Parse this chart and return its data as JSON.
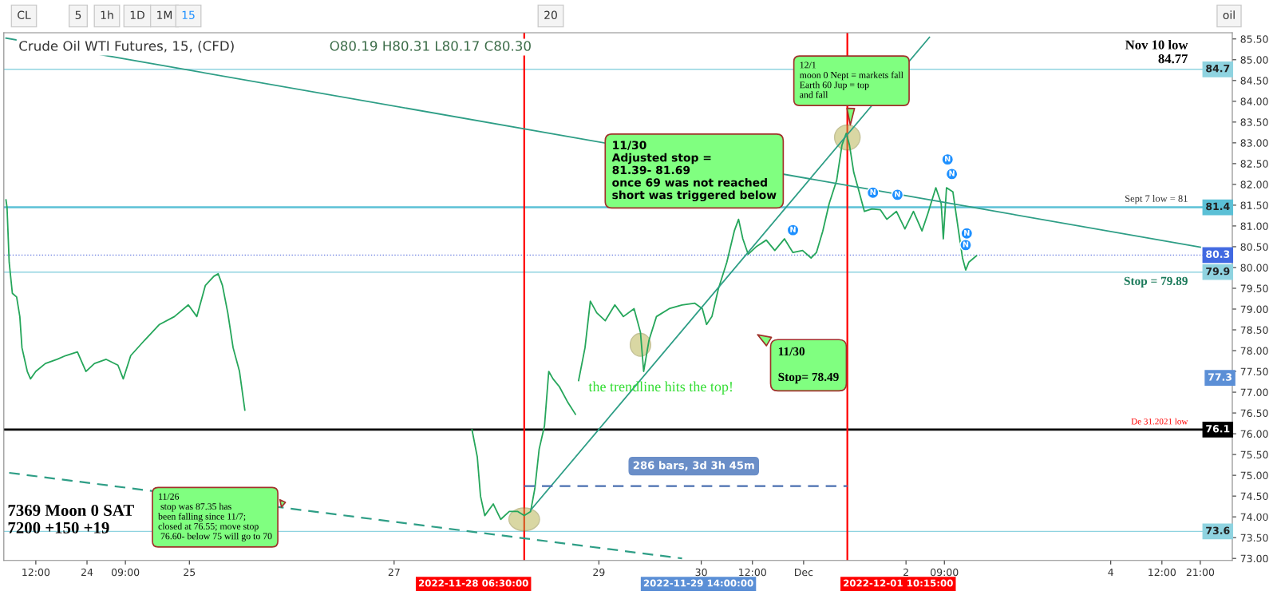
{
  "chart_data": {
    "type": "line",
    "title": "Crude Oil WTI Futures, 15, (CFD)",
    "subtitle": "O80.19 H80.31 L80.17 C80.30",
    "xlim": [
      "2022-11-23T04:30",
      "2022-12-05T04:30"
    ],
    "ylim": [
      72.95,
      85.65
    ],
    "xticks": [
      {
        "value": "2022-11-23T12:00",
        "label": "12:00"
      },
      {
        "value": "2022-11-24",
        "label": "24"
      },
      {
        "value": "2022-11-24T09:00",
        "label": "09:00"
      },
      {
        "value": "2022-11-25",
        "label": "25"
      },
      {
        "value": "2022-11-27",
        "label": "27"
      },
      {
        "value": "2022-11-29",
        "label": "29"
      },
      {
        "value": "2022-11-30",
        "label": "30"
      },
      {
        "value": "2022-11-30T12:00",
        "label": "12:00"
      },
      {
        "value": "2022-12-01",
        "label": "Dec"
      },
      {
        "value": "2022-12-02",
        "label": "2"
      },
      {
        "value": "2022-12-02T09:00",
        "label": "09:00"
      },
      {
        "value": "2022-12-04",
        "label": "4"
      },
      {
        "value": "2022-12-04T12:00",
        "label": "12:00"
      },
      {
        "value": "2022-12-04T21:00",
        "label": "21:00"
      }
    ],
    "yticks": [
      {
        "value": 73.0,
        "label": "73.00"
      },
      {
        "value": 73.5,
        "label": "73.50"
      },
      {
        "value": 74.0,
        "label": "74.00"
      },
      {
        "value": 74.5,
        "label": "74.50"
      },
      {
        "value": 75.0,
        "label": "75.00"
      },
      {
        "value": 75.5,
        "label": "75.50"
      },
      {
        "value": 76.0,
        "label": "76.00"
      },
      {
        "value": 76.5,
        "label": "76.50"
      },
      {
        "value": 77.0,
        "label": "77.00"
      },
      {
        "value": 77.5,
        "label": "77.50"
      },
      {
        "value": 78.0,
        "label": "78.00"
      },
      {
        "value": 78.5,
        "label": "78.50"
      },
      {
        "value": 79.0,
        "label": "79.00"
      },
      {
        "value": 79.5,
        "label": "79.50"
      },
      {
        "value": 80.0,
        "label": "80.00"
      },
      {
        "value": 80.5,
        "label": "80.50"
      },
      {
        "value": 81.0,
        "label": "81.00"
      },
      {
        "value": 81.5,
        "label": "81.50"
      },
      {
        "value": 82.0,
        "label": "82.00"
      },
      {
        "value": 82.5,
        "label": "82.50"
      },
      {
        "value": 83.0,
        "label": "83.00"
      },
      {
        "value": 83.5,
        "label": "83.50"
      },
      {
        "value": 84.0,
        "label": "84.00"
      },
      {
        "value": 84.5,
        "label": "84.50"
      },
      {
        "value": 85.0,
        "label": "85.00"
      },
      {
        "value": 85.5,
        "label": "85.50"
      }
    ],
    "grid": false,
    "series": [
      {
        "color": "#26a65b",
        "x": [
          "2022-11-23T05:00",
          "2022-11-23T05:15",
          "2022-11-23T05:45",
          "2022-11-23T06:30",
          "2022-11-23T07:30",
          "2022-11-23T08:15",
          "2022-11-23T08:45",
          "2022-11-23T10:00",
          "2022-11-23T10:45",
          "2022-11-23T12:00",
          "2022-11-23T14:15",
          "2022-11-23T17:00",
          "2022-11-23T19:00",
          "2022-11-23T21:45",
          "2022-11-23T23:45",
          "2022-11-24T01:45",
          "2022-11-24T04:30",
          "2022-11-24T07:15",
          "2022-11-24T08:30",
          "2022-11-24T10:15",
          "2022-11-24T13:30",
          "2022-11-24T17:00",
          "2022-11-24T20:30",
          "2022-11-24T23:45",
          "2022-11-25T01:45",
          "2022-11-25T03:45",
          "2022-11-25T05:45",
          "2022-11-25T06:45",
          "2022-11-25T07:45",
          "2022-11-25T09:00",
          "2022-11-25T10:15",
          "2022-11-25T11:45",
          "2022-11-25T13:00",
          "2022-11-26T12:00",
          "2022-11-27T18:15",
          "2022-11-27T19:30",
          "2022-11-27T20:15",
          "2022-11-27T21:15",
          "2022-11-27T23:15",
          "2022-11-28T01:00",
          "2022-11-28T03:00",
          "2022-11-28T05:00",
          "2022-11-28T06:30",
          "2022-11-28T08:00",
          "2022-11-28T09:00",
          "2022-11-28T10:00",
          "2022-11-28T11:15",
          "2022-11-28T12:15",
          "2022-11-28T13:15",
          "2022-11-28T14:45",
          "2022-11-28T16:45",
          "2022-11-28T18:30",
          "2022-11-28T19:00",
          "2022-11-28T19:15",
          "2022-11-28T20:45",
          "2022-11-28T22:00",
          "2022-11-28T23:30",
          "2022-11-29T01:30",
          "2022-11-29T03:45",
          "2022-11-29T05:45",
          "2022-11-29T08:15",
          "2022-11-29T09:45",
          "2022-11-29T10:30",
          "2022-11-29T11:45",
          "2022-11-29T13:30",
          "2022-11-29T16:30",
          "2022-11-29T19:30",
          "2022-11-29T22:30",
          "2022-11-30T00:15",
          "2022-11-30T01:15",
          "2022-11-30T02:30",
          "2022-11-30T04:00",
          "2022-11-30T06:00",
          "2022-11-30T07:45",
          "2022-11-30T08:45",
          "2022-11-30T09:45",
          "2022-11-30T11:00",
          "2022-11-30T13:00",
          "2022-11-30T15:15",
          "2022-11-30T17:15",
          "2022-11-30T19:30",
          "2022-11-30T21:30",
          "2022-11-30T23:45",
          "2022-12-01T01:45",
          "2022-12-01T03:00",
          "2022-12-01T04:30",
          "2022-12-01T06:00",
          "2022-12-01T07:45",
          "2022-12-01T09:00",
          "2022-12-01T10:00",
          "2022-12-01T10:45",
          "2022-12-01T11:45",
          "2022-12-01T12:45",
          "2022-12-01T14:15",
          "2022-12-01T16:00",
          "2022-12-01T18:00",
          "2022-12-01T19:30",
          "2022-12-01T21:45",
          "2022-12-01T23:45",
          "2022-12-02T01:45",
          "2022-12-02T03:45",
          "2022-12-02T05:00",
          "2022-12-02T07:00",
          "2022-12-02T08:15",
          "2022-12-02T08:45",
          "2022-12-02T09:30",
          "2022-12-02T11:00",
          "2022-12-02T12:15",
          "2022-12-02T13:15",
          "2022-12-02T14:00",
          "2022-12-02T14:45",
          "2022-12-02T16:30"
        ],
        "values": [
          81.63,
          81.45,
          80.13,
          79.38,
          79.29,
          78.82,
          78.07,
          77.5,
          77.32,
          77.5,
          77.69,
          77.79,
          77.88,
          77.97,
          77.5,
          77.69,
          77.79,
          77.65,
          77.32,
          77.88,
          78.25,
          78.63,
          78.82,
          79.1,
          78.82,
          79.57,
          79.79,
          79.85,
          79.57,
          78.91,
          78.07,
          77.5,
          76.57,
          null,
          76.1,
          75.44,
          74.5,
          74.03,
          74.31,
          73.94,
          74.13,
          74.13,
          74.03,
          74.13,
          74.69,
          75.63,
          76.19,
          77.5,
          77.32,
          77.13,
          76.75,
          76.47,
          null,
          77.28,
          78.07,
          79.19,
          78.91,
          78.72,
          79.1,
          78.82,
          79.01,
          78.44,
          77.5,
          78.25,
          78.82,
          79.01,
          79.1,
          79.14,
          79.01,
          78.63,
          78.82,
          79.48,
          80.13,
          80.88,
          81.16,
          80.69,
          80.32,
          80.51,
          80.66,
          80.41,
          80.69,
          80.36,
          80.41,
          80.23,
          80.36,
          80.88,
          81.54,
          82.1,
          82.95,
          83.23,
          82.95,
          82.29,
          81.92,
          81.35,
          81.41,
          81.39,
          81.16,
          81.35,
          80.93,
          81.35,
          80.88,
          81.26,
          81.92,
          81.54,
          80.69,
          81.92,
          81.82,
          80.93,
          80.23,
          79.94,
          80.13,
          80.28
        ]
      },
      {
        "color": "#2e9e86",
        "x": [
          "2022-11-28T08:00",
          "2022-12-02T05:30"
        ],
        "values": [
          74.16,
          85.54
        ]
      },
      {
        "color": "#2e9e86",
        "x": [
          "2022-11-23T05:00",
          "2022-12-04T21:00"
        ],
        "values": [
          85.52,
          80.49
        ]
      },
      {
        "color": "#2e9e86",
        "x": [
          "2022-11-23T05:45",
          "2022-11-29T19:30"
        ],
        "values": [
          75.06,
          73.0
        ],
        "line_style": "dashed"
      },
      {
        "color": "#4a6fb0",
        "x": [
          "2022-11-28T06:30",
          "2022-12-01T10:15"
        ],
        "values": [
          74.74,
          74.74
        ],
        "line_style": "dashed"
      }
    ],
    "ref_lines": [
      {
        "axis": "y",
        "value": 84.77,
        "label": "Nov 10 low\n84.77",
        "color": "#8fd3e0"
      },
      {
        "axis": "y",
        "value": 81.45,
        "label": "Sept 7 low = 81",
        "color": "#5bc0d6"
      },
      {
        "axis": "y",
        "value": 80.3,
        "color": "#6b7fe0",
        "line_style": "dotted"
      },
      {
        "axis": "y",
        "value": 79.89,
        "label": "Stop = 79.89",
        "color": "#8fd3e0"
      },
      {
        "axis": "y",
        "value": 76.1,
        "label": "De 31.2021 low",
        "color": "#000000"
      },
      {
        "axis": "y",
        "value": 73.65,
        "color": "#8fd3e0"
      },
      {
        "axis": "x",
        "value": "2022-11-28T06:30",
        "label": "2022-11-28 06:30:00",
        "color": "#ff0000"
      },
      {
        "axis": "x",
        "value": "2022-12-01T10:15",
        "label": "2022-12-01 10:15:00",
        "color": "#ff0000"
      }
    ],
    "annotations": [
      "CL",
      "5",
      "1h",
      "1D",
      "1M",
      "15",
      "20",
      "oil",
      "7369 Moon 0 SAT\n7200 +150 +19",
      "11/26\n stop was 87.35 has\nbeen falling since 11/7;\nclosed at 76.55; move stop\n 76.60- below 75 will go to 70",
      "11/30\nAdjusted stop =\n81.39- 81.69\nonce 69 was not reached\nshort was triggered below",
      "12/1\nmoon 0 Nept = markets fall\nEarth 60 Jup = top\nand fall",
      "11/30\n\nStop= 78.49",
      "the trendline hits the top!",
      {
        "text": "286 bars, 3d 3h 45m",
        "x": "2022-11-29T22:15",
        "y": 74.74
      },
      "2022-11-29 14:00:00",
      {
        "text": "N",
        "x": "2022-11-30T21:30",
        "y": 80.9
      },
      {
        "text": "N",
        "x": "2022-12-01T16:15",
        "y": 81.8
      },
      {
        "text": "N",
        "x": "2022-12-01T22:00",
        "y": 81.75
      },
      {
        "text": "N",
        "x": "2022-12-02T09:45",
        "y": 82.6
      },
      {
        "text": "N",
        "x": "2022-12-02T10:45",
        "y": 82.25
      },
      {
        "text": "N",
        "x": "2022-12-02T14:15",
        "y": 80.82
      },
      {
        "text": "N",
        "x": "2022-12-02T14:00",
        "y": 80.54
      },
      {
        "text": "84.7",
        "x": "2022-12-05T04:30",
        "y": 84.77
      },
      {
        "text": "81.4",
        "x": "2022-12-05T04:30",
        "y": 81.45
      },
      {
        "text": "80.3",
        "x": "2022-12-05T04:30",
        "y": 80.3
      },
      {
        "text": "79.9",
        "x": "2022-12-05T04:30",
        "y": 79.89
      },
      "77.3",
      {
        "text": "76.1",
        "x": "2022-12-05T04:30",
        "y": 76.1
      },
      {
        "text": "73.6",
        "x": "2022-12-05T04:30",
        "y": 73.65
      }
    ]
  }
}
